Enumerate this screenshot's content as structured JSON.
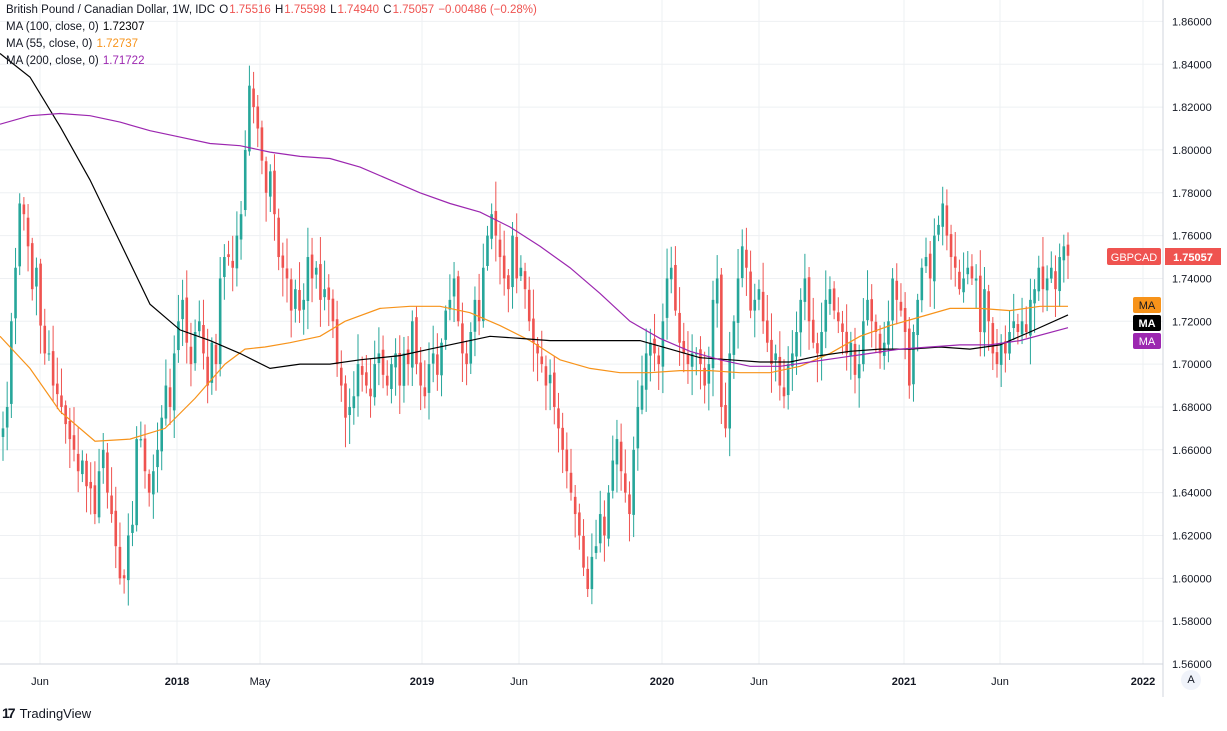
{
  "legend": {
    "title": "British Pound / Canadian Dollar, 1W, IDC",
    "ohlc": {
      "o_label": "O",
      "o": "1.75516",
      "h_label": "H",
      "h": "1.75598",
      "l_label": "L",
      "l": "1.74940",
      "c_label": "C",
      "c": "1.75057",
      "change": "−0.00486 (−0.28%)"
    },
    "ma100": {
      "label": "MA (100, close, 0)",
      "value": "1.72307",
      "color": "#000000"
    },
    "ma55": {
      "label": "MA (55, close, 0)",
      "value": "1.72737",
      "color": "#f7931a"
    },
    "ma200": {
      "label": "MA (200, close, 0)",
      "value": "1.71722",
      "color": "#9c27b0"
    }
  },
  "price_labels": {
    "symbol": "GBPCAD",
    "symbol_value": "1.75057",
    "symbol_color": "#ef5350",
    "ma55_tag": "MA",
    "ma100_tag": "MA",
    "ma200_tag": "MA"
  },
  "footer": {
    "brand": "TradingView",
    "auto_button": "A"
  },
  "colors": {
    "up": "#26a69a",
    "down": "#ef5350",
    "grid": "#eef0f3",
    "axis_text": "#131722"
  },
  "chart_data": {
    "type": "candlestick",
    "title": "British Pound / Canadian Dollar, 1W, IDC",
    "ylim": [
      1.56,
      1.87
    ],
    "y_ticks": [
      "1.56000",
      "1.58000",
      "1.60000",
      "1.62000",
      "1.64000",
      "1.66000",
      "1.68000",
      "1.70000",
      "1.72000",
      "1.74000",
      "1.76000",
      "1.78000",
      "1.80000",
      "1.82000",
      "1.84000",
      "1.86000"
    ],
    "x_ticks": [
      "Jun",
      "2018",
      "May",
      "2019",
      "Jun",
      "2020",
      "Jun",
      "2021",
      "Jun",
      "2022"
    ],
    "grid": true,
    "series": [
      {
        "name": "GBPCAD",
        "kind": "ohlc",
        "close_path": [
          1.67,
          1.68,
          1.72,
          1.745,
          1.775,
          1.77,
          1.755,
          1.735,
          1.745,
          1.718,
          1.705,
          1.705,
          1.69,
          1.686,
          1.68,
          1.672,
          1.665,
          1.66,
          1.65,
          1.655,
          1.643,
          1.642,
          1.63,
          1.65,
          1.66,
          1.64,
          1.63,
          1.615,
          1.6,
          1.6,
          1.62,
          1.625,
          1.665,
          1.665,
          1.65,
          1.64,
          1.65,
          1.66,
          1.675,
          1.69,
          1.68,
          1.705,
          1.72,
          1.73,
          1.71,
          1.7,
          1.715,
          1.72,
          1.705,
          1.69,
          1.71,
          1.7,
          1.74,
          1.75,
          1.75,
          1.745,
          1.76,
          1.77,
          1.8,
          1.83,
          1.82,
          1.81,
          1.795,
          1.78,
          1.79,
          1.77,
          1.75,
          1.745,
          1.74,
          1.725,
          1.735,
          1.725,
          1.73,
          1.75,
          1.74,
          1.745,
          1.73,
          1.735,
          1.73,
          1.72,
          1.7,
          1.69,
          1.675,
          1.68,
          1.685,
          1.7,
          1.695,
          1.69,
          1.685,
          1.7,
          1.705,
          1.695,
          1.69,
          1.7,
          1.705,
          1.69,
          1.705,
          1.7,
          1.72,
          1.7,
          1.69,
          1.685,
          1.7,
          1.705,
          1.695,
          1.71,
          1.725,
          1.73,
          1.74,
          1.72,
          1.705,
          1.7,
          1.715,
          1.73,
          1.72,
          1.745,
          1.76,
          1.77,
          1.76,
          1.75,
          1.74,
          1.735,
          1.76,
          1.74,
          1.745,
          1.735,
          1.72,
          1.71,
          1.705,
          1.7,
          1.69,
          1.695,
          1.68,
          1.67,
          1.66,
          1.65,
          1.64,
          1.63,
          1.62,
          1.605,
          1.595,
          1.61,
          1.615,
          1.63,
          1.62,
          1.64,
          1.655,
          1.665,
          1.65,
          1.64,
          1.63,
          1.66,
          1.68,
          1.69,
          1.705,
          1.71,
          1.705,
          1.7,
          1.72,
          1.74,
          1.745,
          1.725,
          1.71,
          1.705,
          1.7,
          1.705,
          1.705,
          1.7,
          1.69,
          1.7,
          1.73,
          1.74,
          1.68,
          1.67,
          1.705,
          1.72,
          1.74,
          1.755,
          1.745,
          1.725,
          1.73,
          1.735,
          1.72,
          1.71,
          1.7,
          1.705,
          1.69,
          1.685,
          1.7,
          1.705,
          1.715,
          1.73,
          1.74,
          1.72,
          1.71,
          1.705,
          1.715,
          1.73,
          1.735,
          1.725,
          1.72,
          1.715,
          1.705,
          1.71,
          1.695,
          1.7,
          1.72,
          1.73,
          1.72,
          1.715,
          1.705,
          1.71,
          1.72,
          1.74,
          1.73,
          1.725,
          1.715,
          1.69,
          1.715,
          1.73,
          1.745,
          1.75,
          1.74,
          1.76,
          1.765,
          1.775,
          1.76,
          1.75,
          1.745,
          1.735,
          1.74,
          1.745,
          1.74,
          1.74,
          1.715,
          1.735,
          1.72,
          1.705,
          1.7,
          1.71,
          1.705,
          1.715,
          1.72,
          1.715,
          1.72,
          1.715,
          1.73,
          1.735,
          1.745,
          1.735,
          1.74,
          1.745,
          1.735,
          1.75,
          1.755,
          1.7506
        ]
      },
      {
        "name": "MA (55, close, 0)",
        "color": "#f7931a",
        "points": [
          [
            0,
            1.713
          ],
          [
            30,
            1.698
          ],
          [
            60,
            1.678
          ],
          [
            95,
            1.664
          ],
          [
            130,
            1.665
          ],
          [
            165,
            1.67
          ],
          [
            195,
            1.684
          ],
          [
            225,
            1.7
          ],
          [
            245,
            1.707
          ],
          [
            265,
            1.708
          ],
          [
            290,
            1.71
          ],
          [
            320,
            1.713
          ],
          [
            345,
            1.72
          ],
          [
            380,
            1.726
          ],
          [
            410,
            1.727
          ],
          [
            440,
            1.727
          ],
          [
            470,
            1.724
          ],
          [
            500,
            1.718
          ],
          [
            530,
            1.711
          ],
          [
            560,
            1.702
          ],
          [
            590,
            1.698
          ],
          [
            620,
            1.696
          ],
          [
            650,
            1.696
          ],
          [
            680,
            1.697
          ],
          [
            710,
            1.697
          ],
          [
            740,
            1.696
          ],
          [
            770,
            1.696
          ],
          [
            800,
            1.699
          ],
          [
            830,
            1.705
          ],
          [
            860,
            1.713
          ],
          [
            890,
            1.718
          ],
          [
            920,
            1.722
          ],
          [
            950,
            1.726
          ],
          [
            980,
            1.726
          ],
          [
            1010,
            1.725
          ],
          [
            1040,
            1.727
          ],
          [
            1068,
            1.727
          ]
        ]
      },
      {
        "name": "MA (100, close, 0)",
        "color": "#000000",
        "points": [
          [
            0,
            1.845
          ],
          [
            30,
            1.834
          ],
          [
            60,
            1.811
          ],
          [
            90,
            1.786
          ],
          [
            120,
            1.757
          ],
          [
            150,
            1.728
          ],
          [
            180,
            1.716
          ],
          [
            210,
            1.711
          ],
          [
            240,
            1.705
          ],
          [
            270,
            1.698
          ],
          [
            300,
            1.7
          ],
          [
            330,
            1.7
          ],
          [
            360,
            1.702
          ],
          [
            400,
            1.704
          ],
          [
            430,
            1.707
          ],
          [
            460,
            1.71
          ],
          [
            490,
            1.713
          ],
          [
            520,
            1.712
          ],
          [
            550,
            1.711
          ],
          [
            580,
            1.711
          ],
          [
            610,
            1.711
          ],
          [
            640,
            1.711
          ],
          [
            670,
            1.707
          ],
          [
            700,
            1.703
          ],
          [
            730,
            1.702
          ],
          [
            760,
            1.701
          ],
          [
            790,
            1.701
          ],
          [
            820,
            1.704
          ],
          [
            850,
            1.706
          ],
          [
            880,
            1.707
          ],
          [
            910,
            1.707
          ],
          [
            940,
            1.708
          ],
          [
            970,
            1.707
          ],
          [
            1000,
            1.709
          ],
          [
            1030,
            1.715
          ],
          [
            1068,
            1.723
          ]
        ]
      },
      {
        "name": "MA (200, close, 0)",
        "color": "#9c27b0",
        "points": [
          [
            0,
            1.812
          ],
          [
            30,
            1.816
          ],
          [
            60,
            1.817
          ],
          [
            90,
            1.816
          ],
          [
            120,
            1.813
          ],
          [
            150,
            1.809
          ],
          [
            180,
            1.806
          ],
          [
            210,
            1.803
          ],
          [
            240,
            1.802
          ],
          [
            270,
            1.799
          ],
          [
            300,
            1.797
          ],
          [
            330,
            1.796
          ],
          [
            360,
            1.792
          ],
          [
            390,
            1.786
          ],
          [
            420,
            1.78
          ],
          [
            450,
            1.775
          ],
          [
            480,
            1.771
          ],
          [
            510,
            1.764
          ],
          [
            540,
            1.755
          ],
          [
            570,
            1.745
          ],
          [
            600,
            1.733
          ],
          [
            630,
            1.72
          ],
          [
            660,
            1.712
          ],
          [
            690,
            1.706
          ],
          [
            720,
            1.702
          ],
          [
            750,
            1.699
          ],
          [
            780,
            1.699
          ],
          [
            810,
            1.701
          ],
          [
            840,
            1.703
          ],
          [
            870,
            1.705
          ],
          [
            900,
            1.707
          ],
          [
            930,
            1.708
          ],
          [
            960,
            1.709
          ],
          [
            990,
            1.709
          ],
          [
            1020,
            1.711
          ],
          [
            1068,
            1.717
          ]
        ]
      }
    ]
  }
}
